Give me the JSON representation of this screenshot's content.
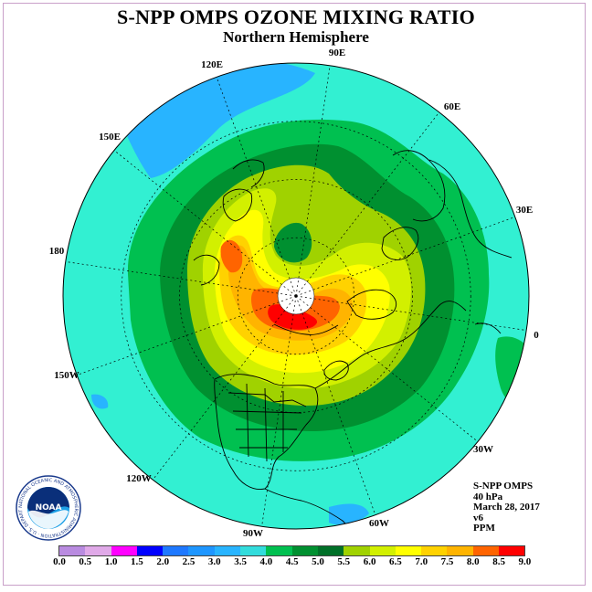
{
  "title": "S-NPP OMPS OZONE MIXING RATIO",
  "subtitle": "Northern Hemisphere",
  "longitude_labels": [
    "90E",
    "60E",
    "30E",
    "0",
    "30W",
    "60W",
    "90W",
    "120W",
    "150W",
    "180",
    "150E",
    "120E"
  ],
  "info": {
    "instrument": "S-NPP OMPS",
    "level": "40 hPa",
    "date": "March 28, 2017",
    "version": "v6",
    "units": "PPM"
  },
  "logo": {
    "text": "NOAA",
    "ring_text": "NATIONAL OCEANIC AND ATMOSPHERIC ADMINISTRATION · U.S. DEPARTMENT OF COMMERCE"
  },
  "colorbar": {
    "ticks": [
      "0.0",
      "0.5",
      "1.0",
      "1.5",
      "2.0",
      "2.5",
      "3.0",
      "3.5",
      "4.0",
      "4.5",
      "5.0",
      "5.5",
      "6.0",
      "6.5",
      "7.0",
      "7.5",
      "8.0",
      "8.5",
      "9.0"
    ],
    "colors": [
      "#b98be0",
      "#e0a9e8",
      "#ff00ff",
      "#0000ff",
      "#1e78ff",
      "#1e96ff",
      "#28b4ff",
      "#32dcdc",
      "#00c050",
      "#009030",
      "#007028",
      "#a0d200",
      "#d2f000",
      "#ffff00",
      "#ffd200",
      "#ffb400",
      "#ff6400",
      "#ff0000",
      "#8b5a3c"
    ]
  },
  "colors": {
    "ocean_background": "#32f0d2",
    "coastline": "#000000",
    "polar_mask": "#ffffff"
  }
}
